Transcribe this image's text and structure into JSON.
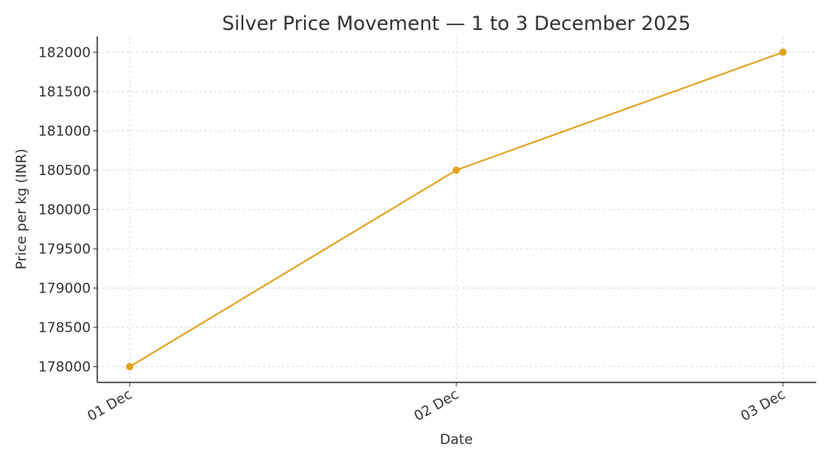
{
  "chart_data": {
    "type": "line",
    "title": "Silver Price Movement — 1 to 3 December 2025",
    "xlabel": "Date",
    "ylabel": "Price per kg (INR)",
    "categories": [
      "01 Dec",
      "02 Dec",
      "03 Dec"
    ],
    "series": [
      {
        "values": [
          178000,
          180500,
          182000
        ],
        "color": "#e3a11b"
      }
    ],
    "ylim": [
      177800,
      182200
    ],
    "yticks": [
      178000,
      178500,
      179000,
      179500,
      180000,
      180500,
      181000,
      181500,
      182000
    ],
    "grid": true,
    "legend": "none"
  }
}
